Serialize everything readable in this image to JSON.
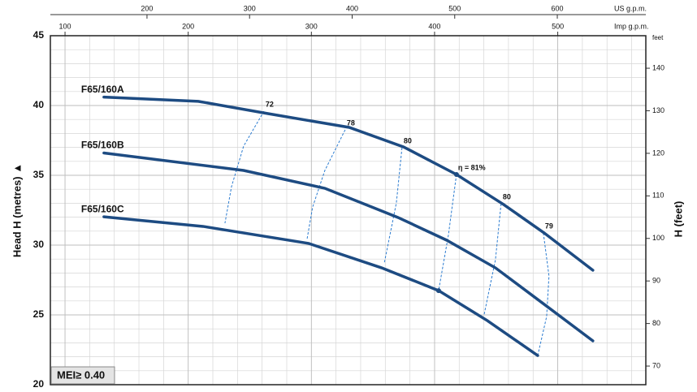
{
  "chart_data": {
    "type": "line",
    "xlabel": "US g.p.m.",
    "x2label": "Imp g.p.m.",
    "ylabel": "Head H (metres) ▲",
    "y2label": "H (feet)",
    "y2unit": "feet",
    "xlim": [
      105.8,
      686.3
    ],
    "xticks": [
      200,
      300,
      400,
      500,
      600
    ],
    "x2lim": [
      88.1,
      571.5
    ],
    "x2ticks": [
      100,
      200,
      300,
      400,
      500
    ],
    "ylim": [
      20,
      45
    ],
    "yticks": [
      20,
      25,
      30,
      35,
      40,
      45
    ],
    "y2lim": [
      65.62,
      147.64
    ],
    "y2ticks": [
      70,
      80,
      90,
      100,
      110,
      120,
      130,
      140
    ],
    "grid": true,
    "series": [
      {
        "name": "F65/160A",
        "color": "#1d4b82",
        "x": [
          158,
          250,
          318,
          397.2,
          450.2,
          501.7,
          547.6,
          587.2,
          634.7
        ],
        "values": [
          40.6,
          40.3,
          39.42,
          38.43,
          37.03,
          35.06,
          32.91,
          30.87,
          28.2
        ]
      },
      {
        "name": "F65/160B",
        "color": "#1d4b82",
        "x": [
          158,
          294.2,
          373.4,
          444.7,
          492.2,
          539.7,
          587.2,
          634.7
        ],
        "values": [
          36.6,
          35.35,
          34.07,
          31.98,
          30.35,
          28.37,
          25.76,
          23.14
        ]
      },
      {
        "name": "F65/160C",
        "color": "#1d4b82",
        "x": [
          158,
          254.6,
          357.6,
          428.8,
          484.3,
          531.8,
          580.9
        ],
        "values": [
          32.03,
          31.34,
          30.12,
          28.37,
          26.74,
          24.59,
          22.09
        ]
      }
    ],
    "efficiency_lines": [
      {
        "label": "72",
        "x": [
          314.0,
          294.2,
          282.4,
          276.0
        ],
        "values": [
          39.59,
          37.09,
          34.19,
          31.57
        ]
      },
      {
        "label": "78",
        "x": [
          393.2,
          373.4,
          361.5,
          356.0
        ],
        "values": [
          38.26,
          35.35,
          32.73,
          30.41
        ]
      },
      {
        "label": "80",
        "x": [
          448.6,
          443.1,
          431.2
        ],
        "values": [
          36.98,
          33.02,
          28.66
        ]
      },
      {
        "label": "η = 81%",
        "x": [
          501.7,
          493.8,
          484.3
        ],
        "values": [
          35.06,
          30.7,
          26.74
        ],
        "markers": true
      },
      {
        "label": "80",
        "x": [
          545.2,
          539.7,
          528.6
        ],
        "values": [
          32.97,
          28.95,
          25.0
        ]
      },
      {
        "label": "79",
        "x": [
          586.4,
          591.9,
          589.6,
          580.9
        ],
        "values": [
          30.87,
          27.79,
          24.88,
          22.09
        ]
      }
    ],
    "annotation": "MEI≥ 0.40"
  }
}
